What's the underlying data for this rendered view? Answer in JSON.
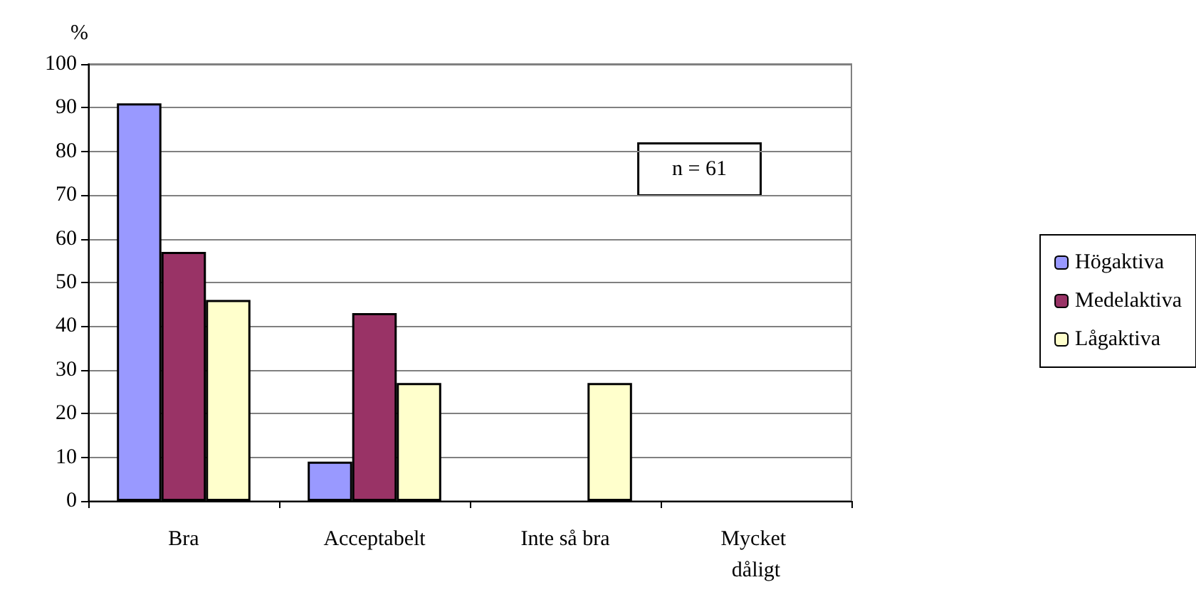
{
  "chart_data": {
    "type": "bar",
    "ylabel": "%",
    "categories": [
      "Bra",
      "Acceptabelt",
      "Inte så bra",
      "Mycket dåligt"
    ],
    "series": [
      {
        "name": "Högaktiva",
        "color": "#9999ff",
        "values": [
          91,
          9,
          null,
          null
        ]
      },
      {
        "name": "Medelaktiva",
        "color": "#993366",
        "values": [
          57,
          43,
          null,
          null
        ]
      },
      {
        "name": "Lågaktiva",
        "color": "#ffffcc",
        "values": [
          46,
          27,
          27,
          null
        ]
      }
    ],
    "ylim": [
      0,
      100
    ],
    "yticks": [
      0,
      10,
      20,
      30,
      40,
      50,
      60,
      70,
      80,
      90,
      100
    ],
    "grid": "y",
    "legend": "right",
    "annotations": [
      "n = 61"
    ]
  }
}
